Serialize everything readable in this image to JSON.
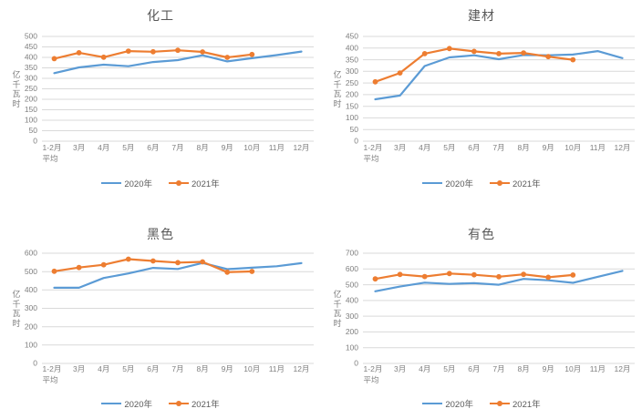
{
  "colors": {
    "series_2020": "#5B9BD5",
    "series_2021": "#ED7D31",
    "gridline": "#D9D9D9",
    "axis_text": "#7F7F7F",
    "title_text": "#595959"
  },
  "chart_data": [
    {
      "type": "line",
      "title": "化工",
      "ylabel": "亿千瓦时",
      "xlabel": "",
      "grid": true,
      "legend_position": "bottom",
      "ylim": [
        0,
        500
      ],
      "yticks": [
        0,
        50,
        100,
        150,
        200,
        250,
        300,
        350,
        400,
        450,
        500
      ],
      "categories": [
        [
          "1-2月",
          "平均"
        ],
        [
          "3月"
        ],
        [
          "4月"
        ],
        [
          "5月"
        ],
        [
          "6月"
        ],
        [
          "7月"
        ],
        [
          "8月"
        ],
        [
          "9月"
        ],
        [
          "10月"
        ],
        [
          "11月"
        ],
        [
          "12月"
        ]
      ],
      "series": [
        {
          "name": "2020年",
          "color": "#5B9BD5",
          "marker": false,
          "values": [
            325,
            352,
            365,
            358,
            378,
            387,
            410,
            381,
            396,
            411,
            428
          ]
        },
        {
          "name": "2021年",
          "color": "#ED7D31",
          "marker": true,
          "values": [
            394,
            422,
            401,
            430,
            427,
            434,
            426,
            400,
            414,
            null,
            null
          ]
        }
      ]
    },
    {
      "type": "line",
      "title": "建材",
      "ylabel": "亿千瓦时",
      "xlabel": "",
      "grid": true,
      "legend_position": "bottom",
      "ylim": [
        0,
        450
      ],
      "yticks": [
        0,
        50,
        100,
        150,
        200,
        250,
        300,
        350,
        400,
        450
      ],
      "categories": [
        [
          "1-2月",
          "平均"
        ],
        [
          "3月"
        ],
        [
          "4月"
        ],
        [
          "5月"
        ],
        [
          "6月"
        ],
        [
          "7月"
        ],
        [
          "8月"
        ],
        [
          "9月"
        ],
        [
          "10月"
        ],
        [
          "11月"
        ],
        [
          "12月"
        ]
      ],
      "series": [
        {
          "name": "2020年",
          "color": "#5B9BD5",
          "marker": false,
          "values": [
            180,
            196,
            323,
            360,
            369,
            352,
            370,
            369,
            372,
            387,
            357
          ]
        },
        {
          "name": "2021年",
          "color": "#ED7D31",
          "marker": true,
          "values": [
            255,
            293,
            376,
            398,
            386,
            376,
            379,
            363,
            350,
            null,
            null
          ]
        }
      ]
    },
    {
      "type": "line",
      "title": "黑色",
      "ylabel": "亿千瓦时",
      "xlabel": "",
      "grid": true,
      "legend_position": "bottom",
      "ylim": [
        0,
        600
      ],
      "yticks": [
        0,
        100,
        200,
        300,
        400,
        500,
        600
      ],
      "categories": [
        [
          "1-2月",
          "平均"
        ],
        [
          "3月"
        ],
        [
          "4月"
        ],
        [
          "5月"
        ],
        [
          "6月"
        ],
        [
          "7月"
        ],
        [
          "8月"
        ],
        [
          "9月"
        ],
        [
          "10月"
        ],
        [
          "11月"
        ],
        [
          "12月"
        ]
      ],
      "series": [
        {
          "name": "2020年",
          "color": "#5B9BD5",
          "marker": false,
          "values": [
            412,
            412,
            465,
            490,
            520,
            514,
            547,
            513,
            521,
            529,
            546
          ]
        },
        {
          "name": "2021年",
          "color": "#ED7D31",
          "marker": true,
          "values": [
            502,
            522,
            537,
            568,
            558,
            549,
            553,
            497,
            501,
            null,
            null
          ]
        }
      ]
    },
    {
      "type": "line",
      "title": "有色",
      "ylabel": "亿千瓦时",
      "xlabel": "",
      "grid": true,
      "legend_position": "bottom",
      "ylim": [
        0,
        700
      ],
      "yticks": [
        0,
        100,
        200,
        300,
        400,
        500,
        600,
        700
      ],
      "categories": [
        [
          "1-2月",
          "平均"
        ],
        [
          "3月"
        ],
        [
          "4月"
        ],
        [
          "5月"
        ],
        [
          "6月"
        ],
        [
          "7月"
        ],
        [
          "8月"
        ],
        [
          "9月"
        ],
        [
          "10月"
        ],
        [
          "11月"
        ],
        [
          "12月"
        ]
      ],
      "series": [
        {
          "name": "2020年",
          "color": "#5B9BD5",
          "marker": false,
          "values": [
            458,
            488,
            513,
            505,
            510,
            500,
            537,
            528,
            512,
            550,
            588
          ]
        },
        {
          "name": "2021年",
          "color": "#ED7D31",
          "marker": true,
          "values": [
            537,
            565,
            552,
            571,
            563,
            551,
            566,
            547,
            562,
            null,
            null
          ]
        }
      ]
    }
  ]
}
